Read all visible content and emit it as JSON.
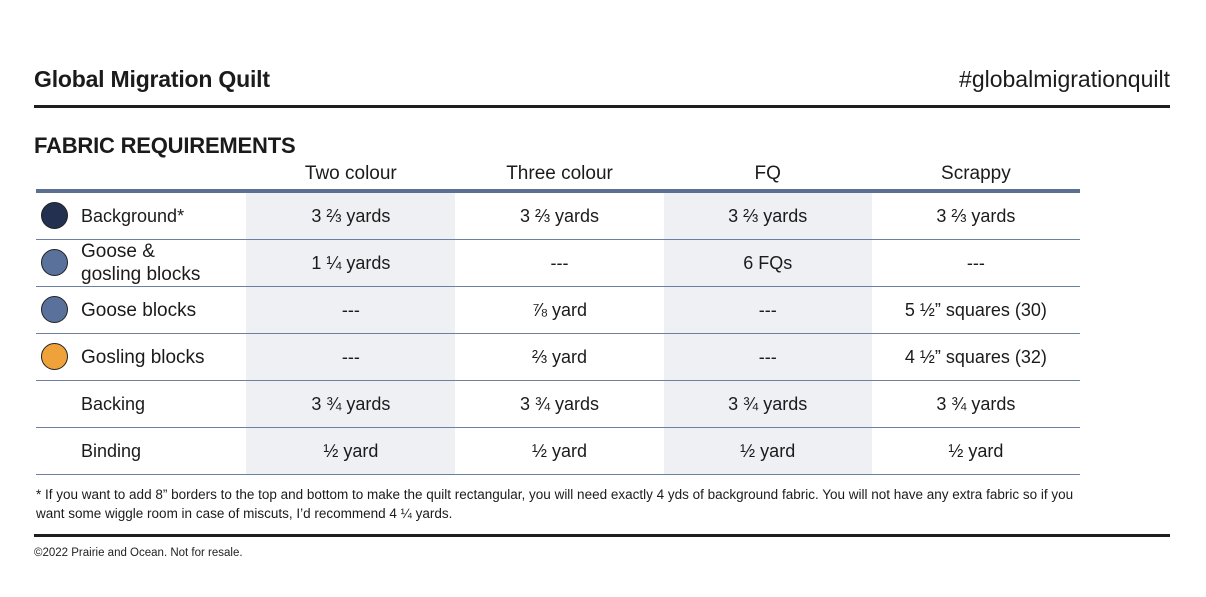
{
  "header": {
    "title": "Global Migration Quilt",
    "hashtag": "#globalmigrationquilt"
  },
  "section_title": "FABRIC REQUIREMENTS",
  "table": {
    "columns": [
      "Two colour",
      "Three colour",
      "FQ",
      "Scrappy"
    ],
    "rows": [
      {
        "fabric": "Background*",
        "swatch_color": "#24304f",
        "swatch_icon": "background-swatch-icon",
        "values": [
          "3 ⅔ yards",
          "3 ⅔ yards",
          "3 ⅔ yards",
          "3 ⅔ yards"
        ]
      },
      {
        "fabric": "Goose & gosling blocks",
        "swatch_color": "#5a719b",
        "swatch_icon": "goose-gosling-swatch-icon",
        "values": [
          "1 ¼ yards",
          "---",
          "6 FQs",
          "---"
        ]
      },
      {
        "fabric": "Goose blocks",
        "swatch_color": "#5a719b",
        "swatch_icon": "goose-swatch-icon",
        "values": [
          "---",
          "⅞ yard",
          "---",
          "5 ½” squares (30)"
        ]
      },
      {
        "fabric": "Gosling blocks",
        "swatch_color": "#f0a23a",
        "swatch_icon": "gosling-swatch-icon",
        "values": [
          "---",
          "⅔ yard",
          "---",
          "4 ½” squares (32)"
        ]
      },
      {
        "fabric": "Backing",
        "swatch_color": "",
        "values": [
          "3 ¾ yards",
          "3 ¾ yards",
          "3 ¾ yards",
          "3 ¾ yards"
        ]
      },
      {
        "fabric": "Binding",
        "swatch_color": "",
        "values": [
          "½ yard",
          "½ yard",
          "½ yard",
          "½ yard"
        ]
      }
    ]
  },
  "footnote": "* If you want to add 8” borders to the top and bottom to make the quilt rectangular, you will need exactly 4 yds of background fabric. You will not have any extra fabric so if you want some wiggle room in case of miscuts, I’d recommend 4 ¼ yards.",
  "copyright": "©2022 Prairie and Ocean. Not for resale.",
  "colors": {
    "rule": "#1e1e1e",
    "header_rule": "#5b6f92",
    "row_rule": "#6d80a3",
    "shade": "#eff0f4"
  }
}
